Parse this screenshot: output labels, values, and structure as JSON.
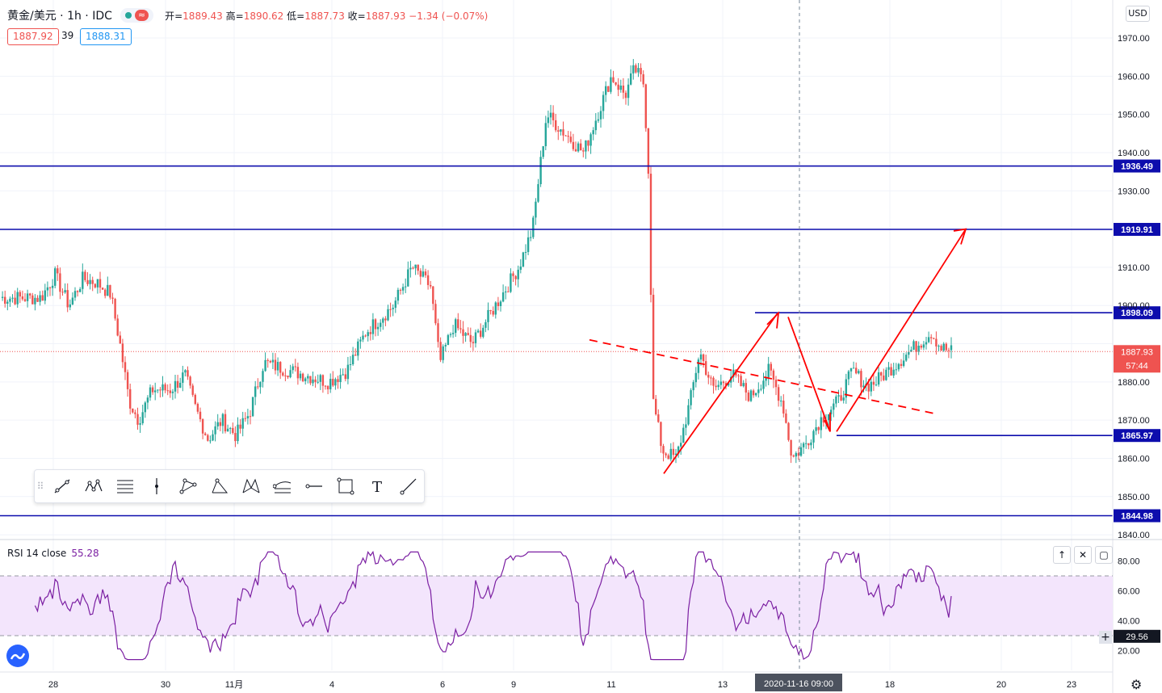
{
  "header": {
    "symbol": "黄金/美元 · 1h · IDC",
    "open_label": "开=",
    "open": "1889.43",
    "high_label": "高=",
    "high": "1890.62",
    "low_label": "低=",
    "low": "1887.73",
    "close_label": "收=",
    "close": "1887.93",
    "change": "−1.34 (−0.07%)",
    "wave_glyph": "≈"
  },
  "price_boxes": {
    "bid": "1887.92",
    "spread": "39",
    "ask": "1888.31"
  },
  "currency": "USD",
  "rsi": {
    "label": "RSI 14 close",
    "value": "55.28"
  },
  "crosshair": {
    "date": "2020-11-16",
    "time": "09:00"
  },
  "colors": {
    "up": "#26a69a",
    "down": "#ef5350",
    "level": "#0d0dad",
    "drawing": "#ff0000",
    "rsi": "#7b1fa2",
    "rsi_band": "#f3e5fc"
  },
  "toolbar": [
    "trend-line-icon",
    "pattern-icon",
    "fib-icon",
    "vertical-line-icon",
    "triangle-icon",
    "abcd-icon",
    "xabcd-icon",
    "fib-fan-icon",
    "horizontal-ray-icon",
    "rectangle-icon",
    "text-icon",
    "ray-icon"
  ],
  "chart_data": {
    "type": "candlestick",
    "symbol": "黄金/美元",
    "timeframe": "1h",
    "y_axis": {
      "ticks": [
        1840,
        1850,
        1860,
        1870,
        1880,
        1890,
        1900,
        1910,
        1920,
        1930,
        1940,
        1950,
        1960,
        1970
      ],
      "ylim": [
        1838,
        1980
      ]
    },
    "x_ticks": [
      "28",
      "30",
      "11月",
      "4",
      "6",
      "9",
      "11",
      "13",
      "18",
      "20",
      "23"
    ],
    "levels": [
      {
        "price": 1936.49,
        "label": "1936.49"
      },
      {
        "price": 1919.91,
        "label": "1919.91"
      },
      {
        "price": 1898.09,
        "label": "1898.09"
      },
      {
        "price": 1865.97,
        "label": "1865.97"
      },
      {
        "price": 1844.98,
        "label": "1844.98"
      }
    ],
    "last_price": {
      "price": 1887.93,
      "label": "1887.93",
      "countdown": "57:44"
    },
    "close_path": [
      {
        "date": "10-27 00:00",
        "close": 1902
      },
      {
        "date": "10-27 06:00",
        "close": 1908
      },
      {
        "date": "10-27 12:00",
        "close": 1900
      },
      {
        "date": "10-27 18:00",
        "close": 1907
      },
      {
        "date": "10-28 00:00",
        "close": 1906
      },
      {
        "date": "10-28 06:00",
        "close": 1903
      },
      {
        "date": "10-28 10:00",
        "close": 1890
      },
      {
        "date": "10-28 14:00",
        "close": 1875
      },
      {
        "date": "10-28 18:00",
        "close": 1870
      },
      {
        "date": "10-29 00:00",
        "close": 1878
      },
      {
        "date": "10-29 08:00",
        "close": 1878
      },
      {
        "date": "10-29 14:00",
        "close": 1882
      },
      {
        "date": "10-29 18:00",
        "close": 1874
      },
      {
        "date": "10-30 00:00",
        "close": 1865
      },
      {
        "date": "10-30 06:00",
        "close": 1870
      },
      {
        "date": "10-30 12:00",
        "close": 1866
      },
      {
        "date": "10-30 18:00",
        "close": 1872
      },
      {
        "date": "10-31 00:00",
        "close": 1885
      },
      {
        "date": "11-02 04:00",
        "close": 1880
      },
      {
        "date": "11-02 12:00",
        "close": 1883
      },
      {
        "date": "11-02 20:00",
        "close": 1893
      },
      {
        "date": "11-03 08:00",
        "close": 1900
      },
      {
        "date": "11-03 16:00",
        "close": 1910
      },
      {
        "date": "11-04 00:00",
        "close": 1905
      },
      {
        "date": "11-04 04:00",
        "close": 1885
      },
      {
        "date": "11-04 10:00",
        "close": 1895
      },
      {
        "date": "11-04 18:00",
        "close": 1890
      },
      {
        "date": "11-05 04:00",
        "close": 1900
      },
      {
        "date": "11-05 14:00",
        "close": 1910
      },
      {
        "date": "11-05 20:00",
        "close": 1920
      },
      {
        "date": "11-06 02:00",
        "close": 1950
      },
      {
        "date": "11-06 10:00",
        "close": 1945
      },
      {
        "date": "11-06 18:00",
        "close": 1940
      },
      {
        "date": "11-09 00:00",
        "close": 1950
      },
      {
        "date": "11-09 06:00",
        "close": 1960
      },
      {
        "date": "11-09 12:00",
        "close": 1955
      },
      {
        "date": "11-09 16:00",
        "close": 1962
      },
      {
        "date": "11-09 20:00",
        "close": 1958
      },
      {
        "date": "11-09 22:00",
        "close": 1935
      },
      {
        "date": "11-10 00:00",
        "close": 1875
      },
      {
        "date": "11-10 04:00",
        "close": 1862
      },
      {
        "date": "11-10 10:00",
        "close": 1860
      },
      {
        "date": "11-10 16:00",
        "close": 1875
      },
      {
        "date": "11-10 20:00",
        "close": 1888
      },
      {
        "date": "11-11 02:00",
        "close": 1878
      },
      {
        "date": "11-11 10:00",
        "close": 1882
      },
      {
        "date": "11-11 18:00",
        "close": 1876
      },
      {
        "date": "11-12 02:00",
        "close": 1883
      },
      {
        "date": "11-12 08:00",
        "close": 1874
      },
      {
        "date": "11-12 12:00",
        "close": 1860
      },
      {
        "date": "11-12 18:00",
        "close": 1864
      },
      {
        "date": "11-13 00:00",
        "close": 1870
      },
      {
        "date": "11-13 08:00",
        "close": 1875
      },
      {
        "date": "11-13 14:00",
        "close": 1883
      },
      {
        "date": "11-13 20:00",
        "close": 1879
      },
      {
        "date": "11-14 00:00",
        "close": 1880
      },
      {
        "date": "11-16 00:00",
        "close": 1893
      },
      {
        "date": "11-16 04:00",
        "close": 1889
      },
      {
        "date": "11-16 09:00",
        "close": 1887.93
      }
    ],
    "rsi": {
      "label": "RSI 14 close",
      "value": 55.28,
      "ticks": [
        20,
        40,
        60,
        80
      ],
      "bands": [
        30,
        70
      ],
      "level_label": "29.56",
      "level": 29.56
    }
  }
}
